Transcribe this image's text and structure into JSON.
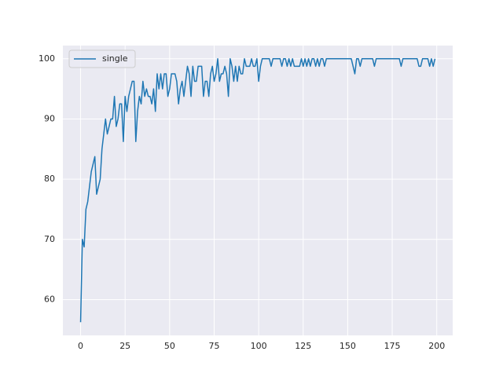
{
  "chart_data": {
    "type": "line",
    "x": [
      0,
      1,
      2,
      3,
      4,
      5,
      6,
      7,
      8,
      9,
      10,
      11,
      12,
      13,
      14,
      15,
      16,
      17,
      18,
      19,
      20,
      21,
      22,
      23,
      24,
      25,
      26,
      27,
      28,
      29,
      30,
      31,
      32,
      33,
      34,
      35,
      36,
      37,
      38,
      39,
      40,
      41,
      42,
      43,
      44,
      45,
      46,
      47,
      48,
      49,
      50,
      51,
      52,
      53,
      54,
      55,
      56,
      57,
      58,
      59,
      60,
      61,
      62,
      63,
      64,
      65,
      66,
      67,
      68,
      69,
      70,
      71,
      72,
      73,
      74,
      75,
      76,
      77,
      78,
      79,
      80,
      81,
      82,
      83,
      84,
      85,
      86,
      87,
      88,
      89,
      90,
      91,
      92,
      93,
      94,
      95,
      96,
      97,
      98,
      99,
      100,
      101,
      102,
      103,
      104,
      105,
      106,
      107,
      108,
      109,
      110,
      111,
      112,
      113,
      114,
      115,
      116,
      117,
      118,
      119,
      120,
      121,
      122,
      123,
      124,
      125,
      126,
      127,
      128,
      129,
      130,
      131,
      132,
      133,
      134,
      135,
      136,
      137,
      138,
      139,
      140,
      141,
      142,
      143,
      144,
      145,
      146,
      147,
      148,
      149,
      150,
      151,
      152,
      153,
      154,
      155,
      156,
      157,
      158,
      159,
      160,
      161,
      162,
      163,
      164,
      165,
      166,
      167,
      168,
      169,
      170,
      171,
      172,
      173,
      174,
      175,
      176,
      177,
      178,
      179,
      180,
      181,
      182,
      183,
      184,
      185,
      186,
      187,
      188,
      189,
      190,
      191,
      192,
      193,
      194,
      195,
      196,
      197,
      198,
      199
    ],
    "series": [
      {
        "name": "single",
        "color": "#1f77b4",
        "values": [
          56.25,
          70,
          68.75,
          75,
          76.25,
          78.75,
          81.25,
          82.5,
          83.75,
          77.5,
          78.75,
          80,
          85,
          87.5,
          90,
          87.5,
          88.75,
          90,
          90,
          93.75,
          88.75,
          90,
          92.5,
          92.5,
          86.25,
          93.75,
          91.25,
          93.75,
          95,
          96.25,
          96.25,
          86.25,
          91.25,
          93.75,
          92.5,
          96.25,
          93.75,
          95,
          93.75,
          93.75,
          92.5,
          95,
          91.25,
          97.5,
          95,
          97.5,
          95,
          97.5,
          97.5,
          93.75,
          95,
          97.5,
          97.5,
          97.5,
          96.25,
          92.5,
          95,
          96.25,
          93.75,
          96.25,
          98.75,
          97.5,
          93.75,
          98.75,
          96.25,
          96.25,
          98.75,
          98.75,
          98.75,
          93.75,
          96.25,
          96.25,
          93.75,
          97.5,
          98.75,
          96.25,
          97.5,
          100,
          96.25,
          97.5,
          97.5,
          98.75,
          97.5,
          93.75,
          100,
          98.75,
          96.25,
          98.75,
          96.25,
          98.75,
          97.5,
          97.5,
          100,
          98.75,
          98.75,
          98.75,
          100,
          98.75,
          98.75,
          100,
          96.25,
          98.75,
          100,
          100,
          100,
          100,
          100,
          98.75,
          100,
          100,
          100,
          100,
          100,
          98.75,
          100,
          100,
          98.75,
          100,
          98.75,
          100,
          98.75,
          98.75,
          98.75,
          98.75,
          100,
          98.75,
          100,
          98.75,
          100,
          98.75,
          100,
          100,
          98.75,
          100,
          98.75,
          100,
          100,
          98.75,
          100,
          100,
          100,
          100,
          100,
          100,
          100,
          100,
          100,
          100,
          100,
          100,
          100,
          100,
          100,
          98.75,
          97.5,
          100,
          100,
          98.75,
          100,
          100,
          100,
          100,
          100,
          100,
          100,
          98.75,
          100,
          100,
          100,
          100,
          100,
          100,
          100,
          100,
          100,
          100,
          100,
          100,
          100,
          100,
          98.75,
          100,
          100,
          100,
          100,
          100,
          100,
          100,
          100,
          100,
          98.75,
          98.75,
          100,
          100,
          100,
          100,
          98.75,
          100,
          98.75,
          100
        ]
      }
    ],
    "xlim": [
      -9.95,
      208.95
    ],
    "ylim": [
      54.06,
      102.19
    ],
    "xticks": [
      0,
      25,
      50,
      75,
      100,
      125,
      150,
      175,
      200
    ],
    "yticks": [
      60,
      70,
      80,
      90,
      100
    ],
    "grid": true,
    "legend": "upper left"
  }
}
